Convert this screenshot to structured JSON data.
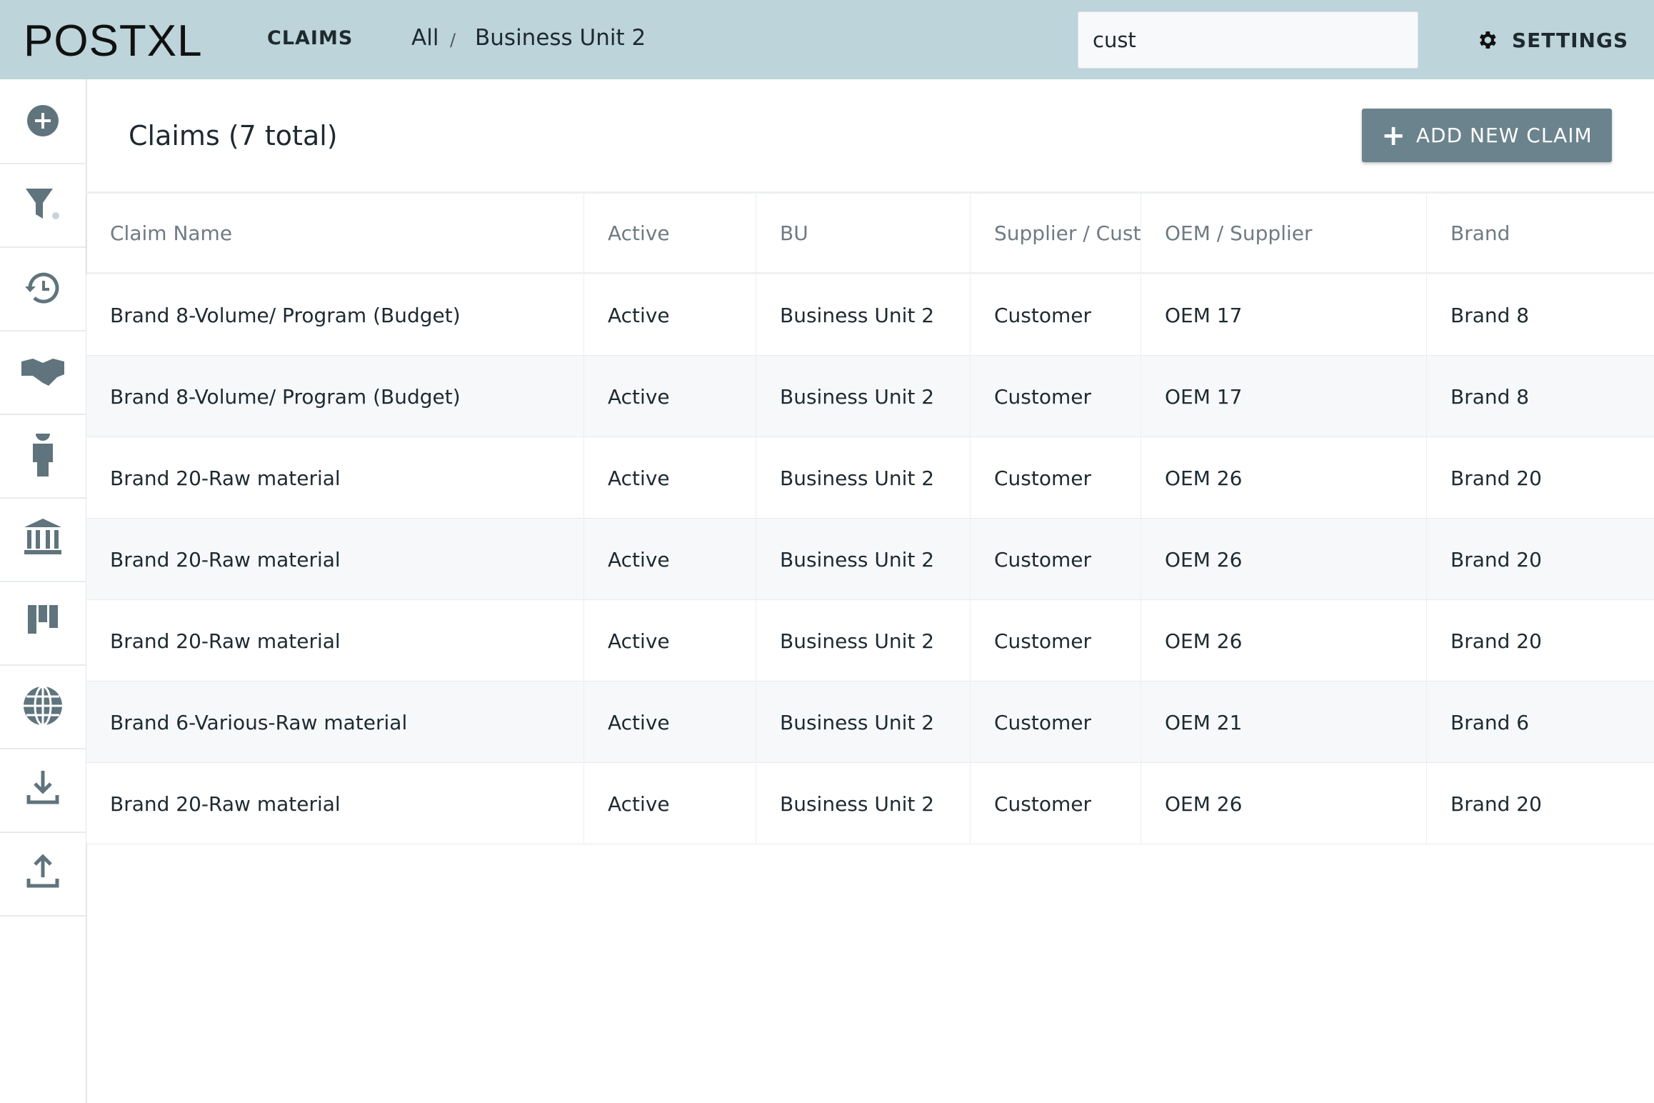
{
  "header": {
    "logo": "POSTXL",
    "nav": "CLAIMS",
    "breadcrumb": [
      "All",
      "/",
      "Business Unit 2"
    ],
    "search": "cust",
    "settings": "SETTINGS"
  },
  "content": {
    "title": "Claims (7 total)",
    "button": "ADD NEW CLAIM"
  },
  "table": {
    "columns": [
      "Claim Name",
      "Active",
      "BU",
      "Supplier / Cust",
      "OEM / Supplier",
      "Brand"
    ],
    "rows": [
      [
        "Brand 8-Volume/ Program (Budget)",
        "Active",
        "Business Unit 2",
        "Customer",
        "OEM 17",
        "Brand 8"
      ],
      [
        "Brand 8-Volume/ Program (Budget)",
        "Active",
        "Business Unit 2",
        "Customer",
        "OEM 17",
        "Brand 8"
      ],
      [
        "Brand 20-Raw material",
        "Active",
        "Business Unit 2",
        "Customer",
        "OEM 26",
        "Brand 20"
      ],
      [
        "Brand 20-Raw material",
        "Active",
        "Business Unit 2",
        "Customer",
        "OEM 26",
        "Brand 20"
      ],
      [
        "Brand 20-Raw material",
        "Active",
        "Business Unit 2",
        "Customer",
        "OEM 26",
        "Brand 20"
      ],
      [
        "Brand 6-Various-Raw material",
        "Active",
        "Business Unit 2",
        "Customer",
        "OEM 21",
        "Brand 6"
      ],
      [
        "Brand 20-Raw material",
        "Active",
        "Business Unit 2",
        "Customer",
        "OEM 26",
        "Brand 20"
      ]
    ]
  }
}
